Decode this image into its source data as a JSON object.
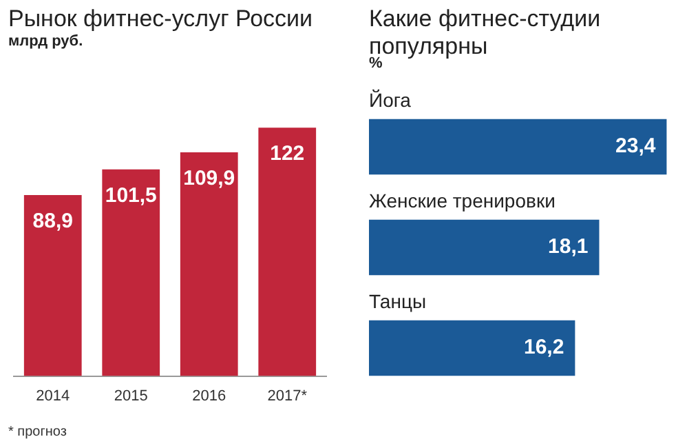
{
  "chart_data": [
    {
      "type": "bar",
      "title": "Рынок фитнес-услуг России",
      "subtitle": "млрд руб.",
      "categories": [
        "2014",
        "2015",
        "2016",
        "2017*"
      ],
      "values": [
        88.9,
        101.5,
        109.9,
        122
      ],
      "value_labels": [
        "88,9",
        "101,5",
        "109,9",
        "122"
      ],
      "color": "#c1263b",
      "grid": false,
      "legend": false,
      "tick_labels": "x",
      "annotations": [
        "* прогноз"
      ]
    },
    {
      "type": "bar",
      "orientation": "horizontal",
      "title": "Какие фитнес-студии популярны",
      "subtitle": "%",
      "categories": [
        "Йога",
        "Женские тренировки",
        "Танцы"
      ],
      "values": [
        23.4,
        18.1,
        16.2
      ],
      "value_labels": [
        "23,4",
        "18,1",
        "16,2"
      ],
      "color": "#1b5a97",
      "grid": false,
      "legend": false,
      "tick_labels": "y"
    }
  ]
}
